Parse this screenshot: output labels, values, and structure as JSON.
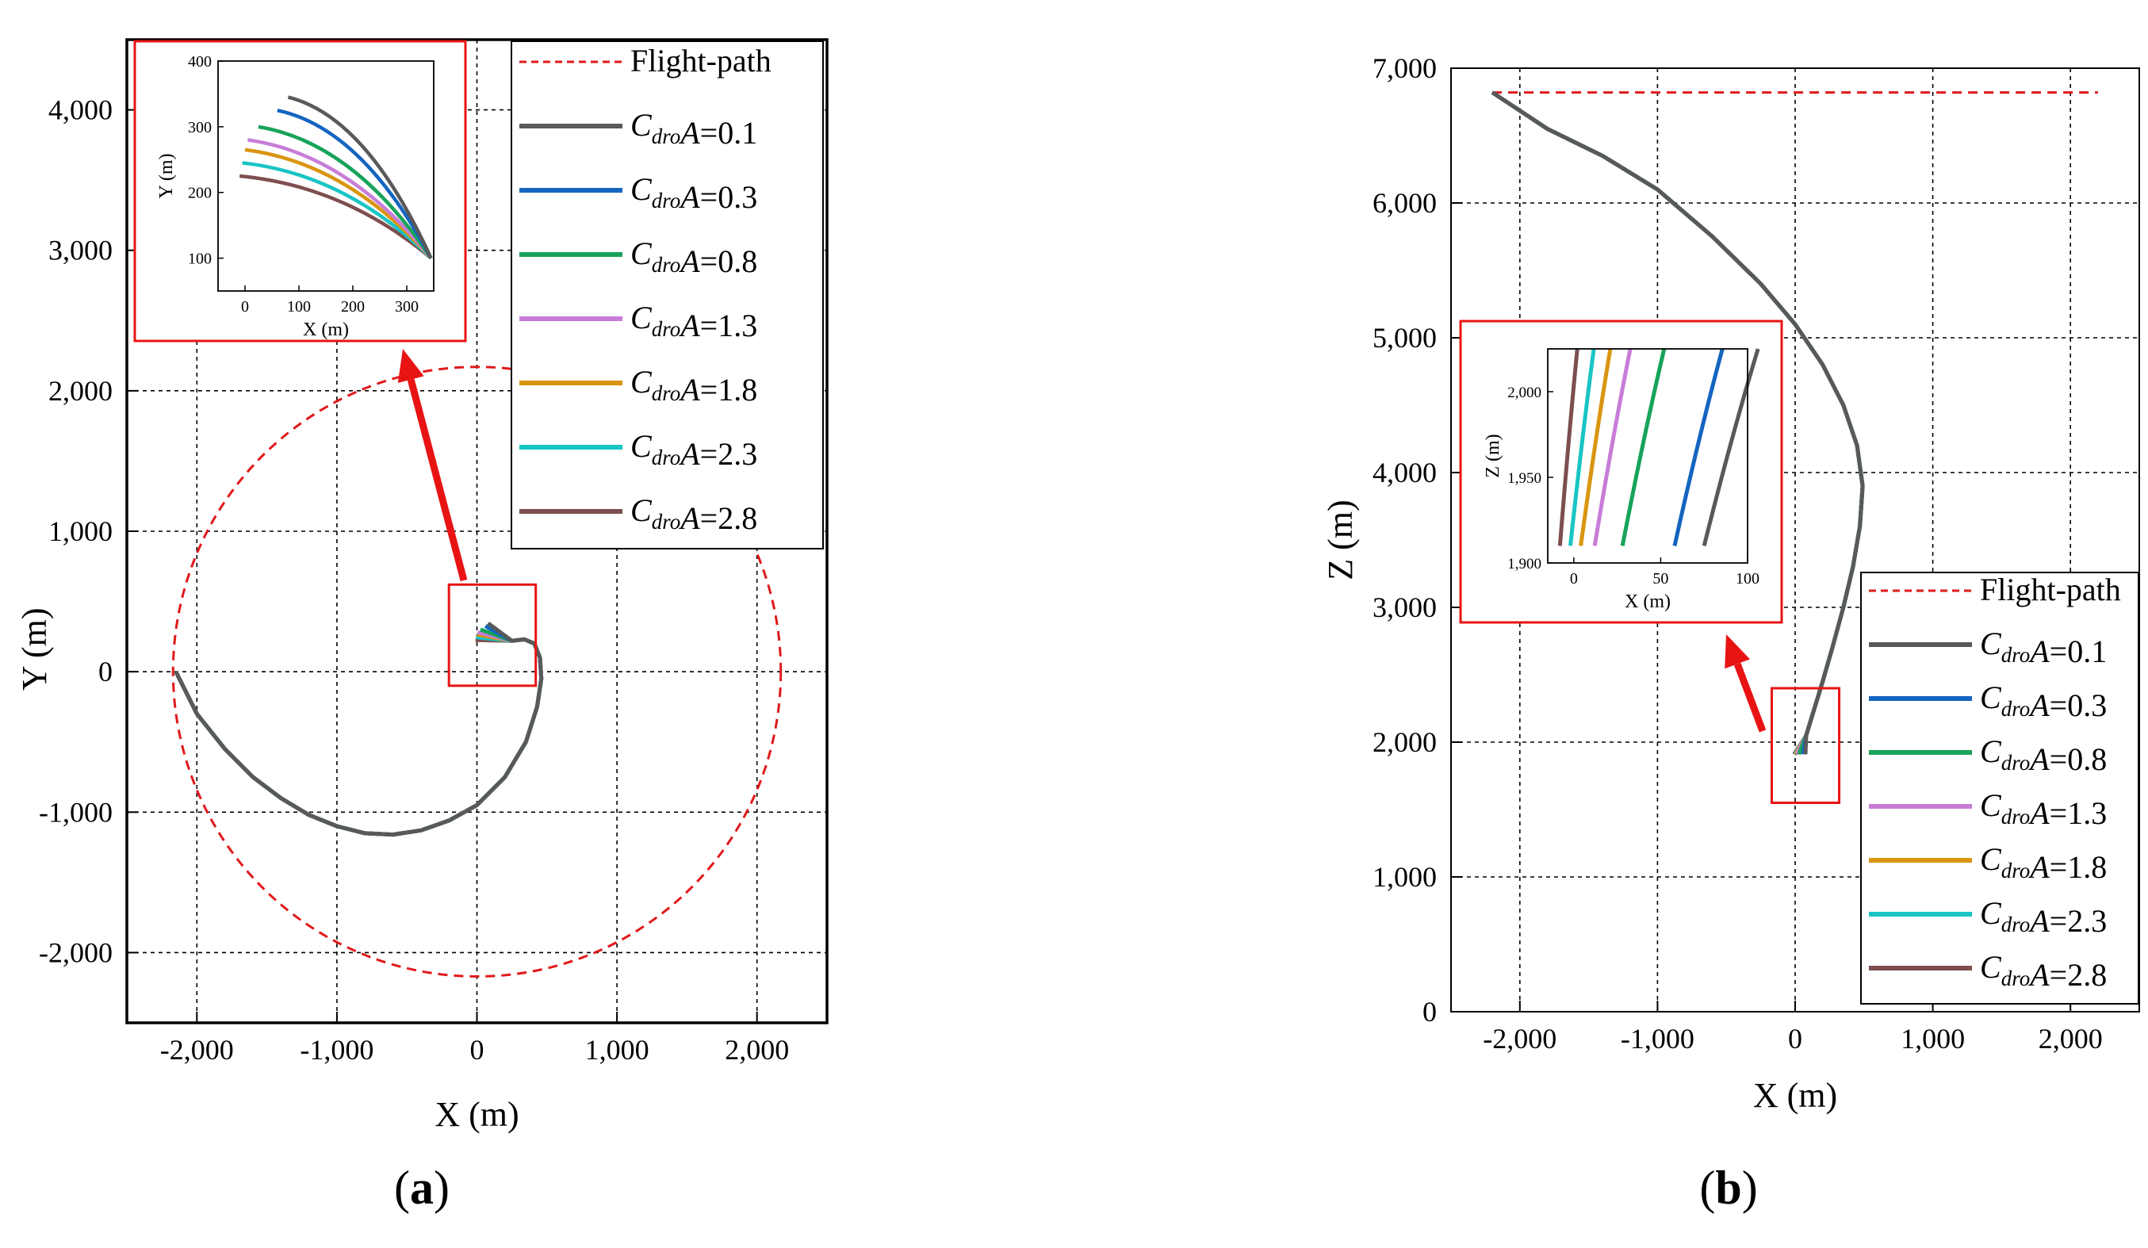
{
  "chart_data": [
    {
      "panel_label": "a",
      "type": "line",
      "xlabel": "X (m)",
      "ylabel": "Y (m)",
      "xlim": [
        -2500,
        2500
      ],
      "ylim": [
        -2500,
        4500
      ],
      "xticks": [
        -2000,
        -1000,
        0,
        1000,
        2000
      ],
      "yticks": [
        -2000,
        -1000,
        0,
        1000,
        2000,
        3000,
        4000
      ],
      "xtick_labels": [
        "-2,000",
        "-1,000",
        "0",
        "1,000",
        "2,000"
      ],
      "ytick_labels": [
        "-2,000",
        "-1,000",
        "0",
        "1,000",
        "2,000",
        "3,000",
        "4,000"
      ],
      "grid": true,
      "legend": {
        "position": "top-right",
        "entries": [
          {
            "base": "C",
            "sub": "dro",
            "rest": "A=0.1"
          },
          {
            "base": "C",
            "sub": "dro",
            "rest": "A=0.3"
          },
          {
            "base": "C",
            "sub": "dro",
            "rest": "A=0.8"
          },
          {
            "base": "C",
            "sub": "dro",
            "rest": "A=1.3"
          },
          {
            "base": "C",
            "sub": "dro",
            "rest": "A=1.8"
          },
          {
            "base": "C",
            "sub": "dro",
            "rest": "A=2.3"
          },
          {
            "base": "C",
            "sub": "dro",
            "rest": "A=2.8"
          }
        ],
        "flight_path_label": "Flight-path"
      },
      "flight_path": {
        "shape": "circle",
        "center": [
          0,
          0
        ],
        "radius": 2170
      },
      "series_common": {
        "x": [
          -2150,
          -2000,
          -1800,
          -1600,
          -1400,
          -1200,
          -1000,
          -800,
          -600,
          -400,
          -200,
          0,
          200,
          350,
          430,
          460,
          450,
          410,
          340,
          250
        ],
        "y": [
          0,
          -300,
          -550,
          -750,
          -900,
          -1020,
          -1100,
          -1150,
          -1160,
          -1130,
          -1060,
          -950,
          -750,
          -500,
          -250,
          -50,
          100,
          200,
          230,
          220
        ]
      },
      "series": [
        {
          "name": "C_dro A=0.1",
          "color": "#595959",
          "end_x": 80,
          "end_y": 345
        },
        {
          "name": "C_dro A=0.3",
          "color": "#1565c0",
          "end_x": 60,
          "end_y": 325
        },
        {
          "name": "C_dro A=0.8",
          "color": "#17a35a",
          "end_x": 25,
          "end_y": 300
        },
        {
          "name": "C_dro A=1.3",
          "color": "#c77dd8",
          "end_x": 5,
          "end_y": 280
        },
        {
          "name": "C_dro A=1.8",
          "color": "#d9950f",
          "end_x": 0,
          "end_y": 265
        },
        {
          "name": "C_dro A=2.3",
          "color": "#19c4c4",
          "end_x": -5,
          "end_y": 245
        },
        {
          "name": "C_dro A=2.8",
          "color": "#7e4e4e",
          "end_x": -10,
          "end_y": 225
        }
      ],
      "inset": {
        "xlabel": "X (m)",
        "ylabel": "Y (m)",
        "xlim": [
          -50,
          350
        ],
        "ylim": [
          50,
          400
        ],
        "xticks": [
          0,
          100,
          200,
          300
        ],
        "yticks": [
          100,
          200,
          300,
          400
        ],
        "xtick_labels": [
          "0",
          "100",
          "200",
          "300"
        ],
        "ytick_labels": [
          "100",
          "200",
          "300",
          "400"
        ],
        "series_end": [
          345,
          100
        ],
        "zoom_box": {
          "xlim": [
            -200,
            420
          ],
          "ylim": [
            -100,
            620
          ]
        }
      }
    },
    {
      "panel_label": "b",
      "type": "line",
      "xlabel": "X (m)",
      "ylabel": "Z (m)",
      "xlim": [
        -2500,
        2500
      ],
      "ylim": [
        0,
        7000
      ],
      "xticks": [
        -2000,
        -1000,
        0,
        1000,
        2000
      ],
      "yticks": [
        0,
        1000,
        2000,
        3000,
        4000,
        5000,
        6000,
        7000
      ],
      "xtick_labels": [
        "-2,000",
        "-1,000",
        "0",
        "1,000",
        "2,000"
      ],
      "ytick_labels": [
        "0",
        "1,000",
        "2,000",
        "3,000",
        "4,000",
        "5,000",
        "6,000",
        "7,000"
      ],
      "grid": true,
      "legend": {
        "position": "bottom-right",
        "entries": [
          {
            "base": "C",
            "sub": "dro",
            "rest": "A=0.1"
          },
          {
            "base": "C",
            "sub": "dro",
            "rest": "A=0.3"
          },
          {
            "base": "C",
            "sub": "dro",
            "rest": "A=0.8"
          },
          {
            "base": "C",
            "sub": "dro",
            "rest": "A=1.3"
          },
          {
            "base": "C",
            "sub": "dro",
            "rest": "A=1.8"
          },
          {
            "base": "C",
            "sub": "dro",
            "rest": "A=2.3"
          },
          {
            "base": "C",
            "sub": "dro",
            "rest": "A=2.8"
          }
        ],
        "flight_path_label": "Flight-path"
      },
      "flight_path": {
        "shape": "horizontal",
        "x": [
          -2200,
          2200
        ],
        "z": 6820
      },
      "series_common": {
        "x": [
          -2200,
          -1800,
          -1400,
          -1000,
          -600,
          -250,
          0,
          200,
          350,
          450,
          490,
          470,
          420,
          350,
          270,
          200,
          140,
          80
        ],
        "z": [
          6820,
          6550,
          6350,
          6100,
          5750,
          5400,
          5100,
          4800,
          4500,
          4200,
          3900,
          3600,
          3300,
          3000,
          2700,
          2450,
          2250,
          2050
        ]
      },
      "series": [
        {
          "name": "C_dro A=0.1",
          "color": "#595959",
          "end_x": 75,
          "end_z": 1910
        },
        {
          "name": "C_dro A=0.3",
          "color": "#1565c0",
          "end_x": 58,
          "end_z": 1910
        },
        {
          "name": "C_dro A=0.8",
          "color": "#17a35a",
          "end_x": 28,
          "end_z": 1910
        },
        {
          "name": "C_dro A=1.3",
          "color": "#c77dd8",
          "end_x": 12,
          "end_z": 1910
        },
        {
          "name": "C_dro A=1.8",
          "color": "#d9950f",
          "end_x": 4,
          "end_z": 1910
        },
        {
          "name": "C_dro A=2.3",
          "color": "#19c4c4",
          "end_x": -2,
          "end_z": 1910
        },
        {
          "name": "C_dro A=2.8",
          "color": "#7e4e4e",
          "end_x": -8,
          "end_z": 1910
        }
      ],
      "inset": {
        "xlabel": "X (m)",
        "ylabel": "Z (m)",
        "xlim": [
          -15,
          100
        ],
        "ylim": [
          1900,
          2025
        ],
        "xticks": [
          0,
          50,
          100
        ],
        "yticks": [
          1900,
          1950,
          2000
        ],
        "xtick_labels": [
          "0",
          "50",
          "100"
        ],
        "ytick_labels": [
          "1,900",
          "1,950",
          "2,000"
        ],
        "zoom_box": {
          "xlim": [
            -170,
            320
          ],
          "ylim": [
            1550,
            2400
          ]
        }
      }
    }
  ]
}
